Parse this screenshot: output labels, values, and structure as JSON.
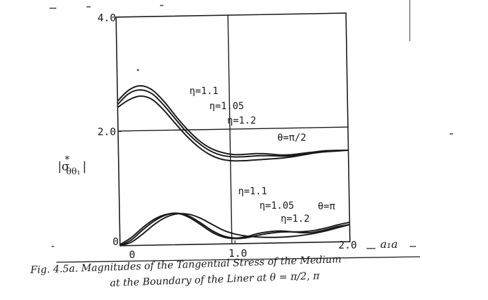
{
  "chart_data": {
    "type": "line",
    "xlim": [
      0,
      2.0
    ],
    "ylim": [
      0,
      4.0
    ],
    "x_ticks": [
      "0",
      "1.0",
      "2.0"
    ],
    "y_ticks": [
      "0",
      "2.0",
      "4.0"
    ],
    "xlabel": "a₁a",
    "ylabel_main": "|σ",
    "ylabel_sup": "*",
    "ylabel_sub": "θθ₁",
    "ylabel_end": "|",
    "grid": "crosshair at x=1.0, y=2.0",
    "annotations": [
      "η=1.1",
      "η=1.05",
      "η=1.2",
      "θ=π/2",
      "η=1.1",
      "η=1.05",
      "η=1.2",
      "θ=π"
    ],
    "series": [
      {
        "group": "θ=π/2",
        "eta": "1.1",
        "x": [
          0,
          0.1,
          0.2,
          0.3,
          0.4,
          0.5,
          0.6,
          0.7,
          0.8,
          0.9,
          1.0,
          1.1,
          1.2,
          1.3,
          1.4,
          1.5,
          1.6,
          1.7,
          1.8,
          1.9,
          2.0
        ],
        "y": [
          2.53,
          2.72,
          2.79,
          2.72,
          2.52,
          2.26,
          2.02,
          1.82,
          1.68,
          1.6,
          1.56,
          1.56,
          1.57,
          1.56,
          1.54,
          1.54,
          1.56,
          1.58,
          1.6,
          1.6,
          1.6
        ]
      },
      {
        "group": "θ=π/2",
        "eta": "1.05",
        "x": [
          0,
          0.1,
          0.2,
          0.3,
          0.4,
          0.5,
          0.6,
          0.7,
          0.8,
          0.9,
          1.0,
          1.1,
          1.2,
          1.3,
          1.4,
          1.5,
          1.6,
          1.7,
          1.8,
          1.9,
          2.0
        ],
        "y": [
          2.47,
          2.66,
          2.72,
          2.65,
          2.45,
          2.2,
          1.96,
          1.77,
          1.63,
          1.55,
          1.52,
          1.52,
          1.53,
          1.53,
          1.52,
          1.52,
          1.55,
          1.57,
          1.59,
          1.6,
          1.6
        ]
      },
      {
        "group": "θ=π/2",
        "eta": "1.2",
        "x": [
          0,
          0.1,
          0.2,
          0.3,
          0.4,
          0.5,
          0.6,
          0.7,
          0.8,
          0.9,
          1.0,
          1.1,
          1.2,
          1.3,
          1.4,
          1.5,
          1.6,
          1.7,
          1.8,
          1.9,
          2.0
        ],
        "y": [
          2.42,
          2.55,
          2.61,
          2.55,
          2.36,
          2.12,
          1.89,
          1.7,
          1.56,
          1.48,
          1.45,
          1.45,
          1.46,
          1.47,
          1.48,
          1.5,
          1.53,
          1.56,
          1.58,
          1.59,
          1.6
        ]
      },
      {
        "group": "θ=π",
        "eta": "1.1",
        "x": [
          0,
          0.1,
          0.2,
          0.3,
          0.4,
          0.5,
          0.6,
          0.7,
          0.8,
          0.9,
          1.0,
          1.1,
          1.2,
          1.3,
          1.4,
          1.5,
          1.6,
          1.7,
          1.8,
          1.9,
          2.0
        ],
        "y": [
          0.0,
          0.1,
          0.27,
          0.42,
          0.52,
          0.55,
          0.5,
          0.38,
          0.24,
          0.14,
          0.1,
          0.12,
          0.17,
          0.2,
          0.21,
          0.19,
          0.17,
          0.18,
          0.22,
          0.27,
          0.3
        ]
      },
      {
        "group": "θ=π",
        "eta": "1.05",
        "x": [
          0,
          0.1,
          0.2,
          0.3,
          0.4,
          0.5,
          0.6,
          0.7,
          0.8,
          0.9,
          1.0,
          1.1,
          1.2,
          1.3,
          1.4,
          1.5,
          1.6,
          1.7,
          1.8,
          1.9,
          2.0
        ],
        "y": [
          0.02,
          0.14,
          0.31,
          0.45,
          0.53,
          0.55,
          0.48,
          0.35,
          0.21,
          0.12,
          0.09,
          0.1,
          0.14,
          0.17,
          0.19,
          0.19,
          0.19,
          0.21,
          0.25,
          0.3,
          0.34
        ]
      },
      {
        "group": "θ=π",
        "eta": "1.2",
        "x": [
          0,
          0.1,
          0.2,
          0.3,
          0.4,
          0.5,
          0.6,
          0.7,
          0.8,
          0.9,
          1.0,
          1.1,
          1.2,
          1.3,
          1.4,
          1.5,
          1.6,
          1.7,
          1.8,
          1.9,
          2.0
        ],
        "y": [
          0.0,
          0.06,
          0.2,
          0.36,
          0.48,
          0.54,
          0.53,
          0.46,
          0.35,
          0.24,
          0.17,
          0.13,
          0.11,
          0.1,
          0.1,
          0.11,
          0.13,
          0.16,
          0.2,
          0.25,
          0.3
        ]
      }
    ]
  },
  "caption": {
    "line1": "Fig. 4.5a.  Magnitudes of the Tangential Stress of the Medium",
    "line2": "at the Boundary of the Liner at θ = π/2, π"
  }
}
